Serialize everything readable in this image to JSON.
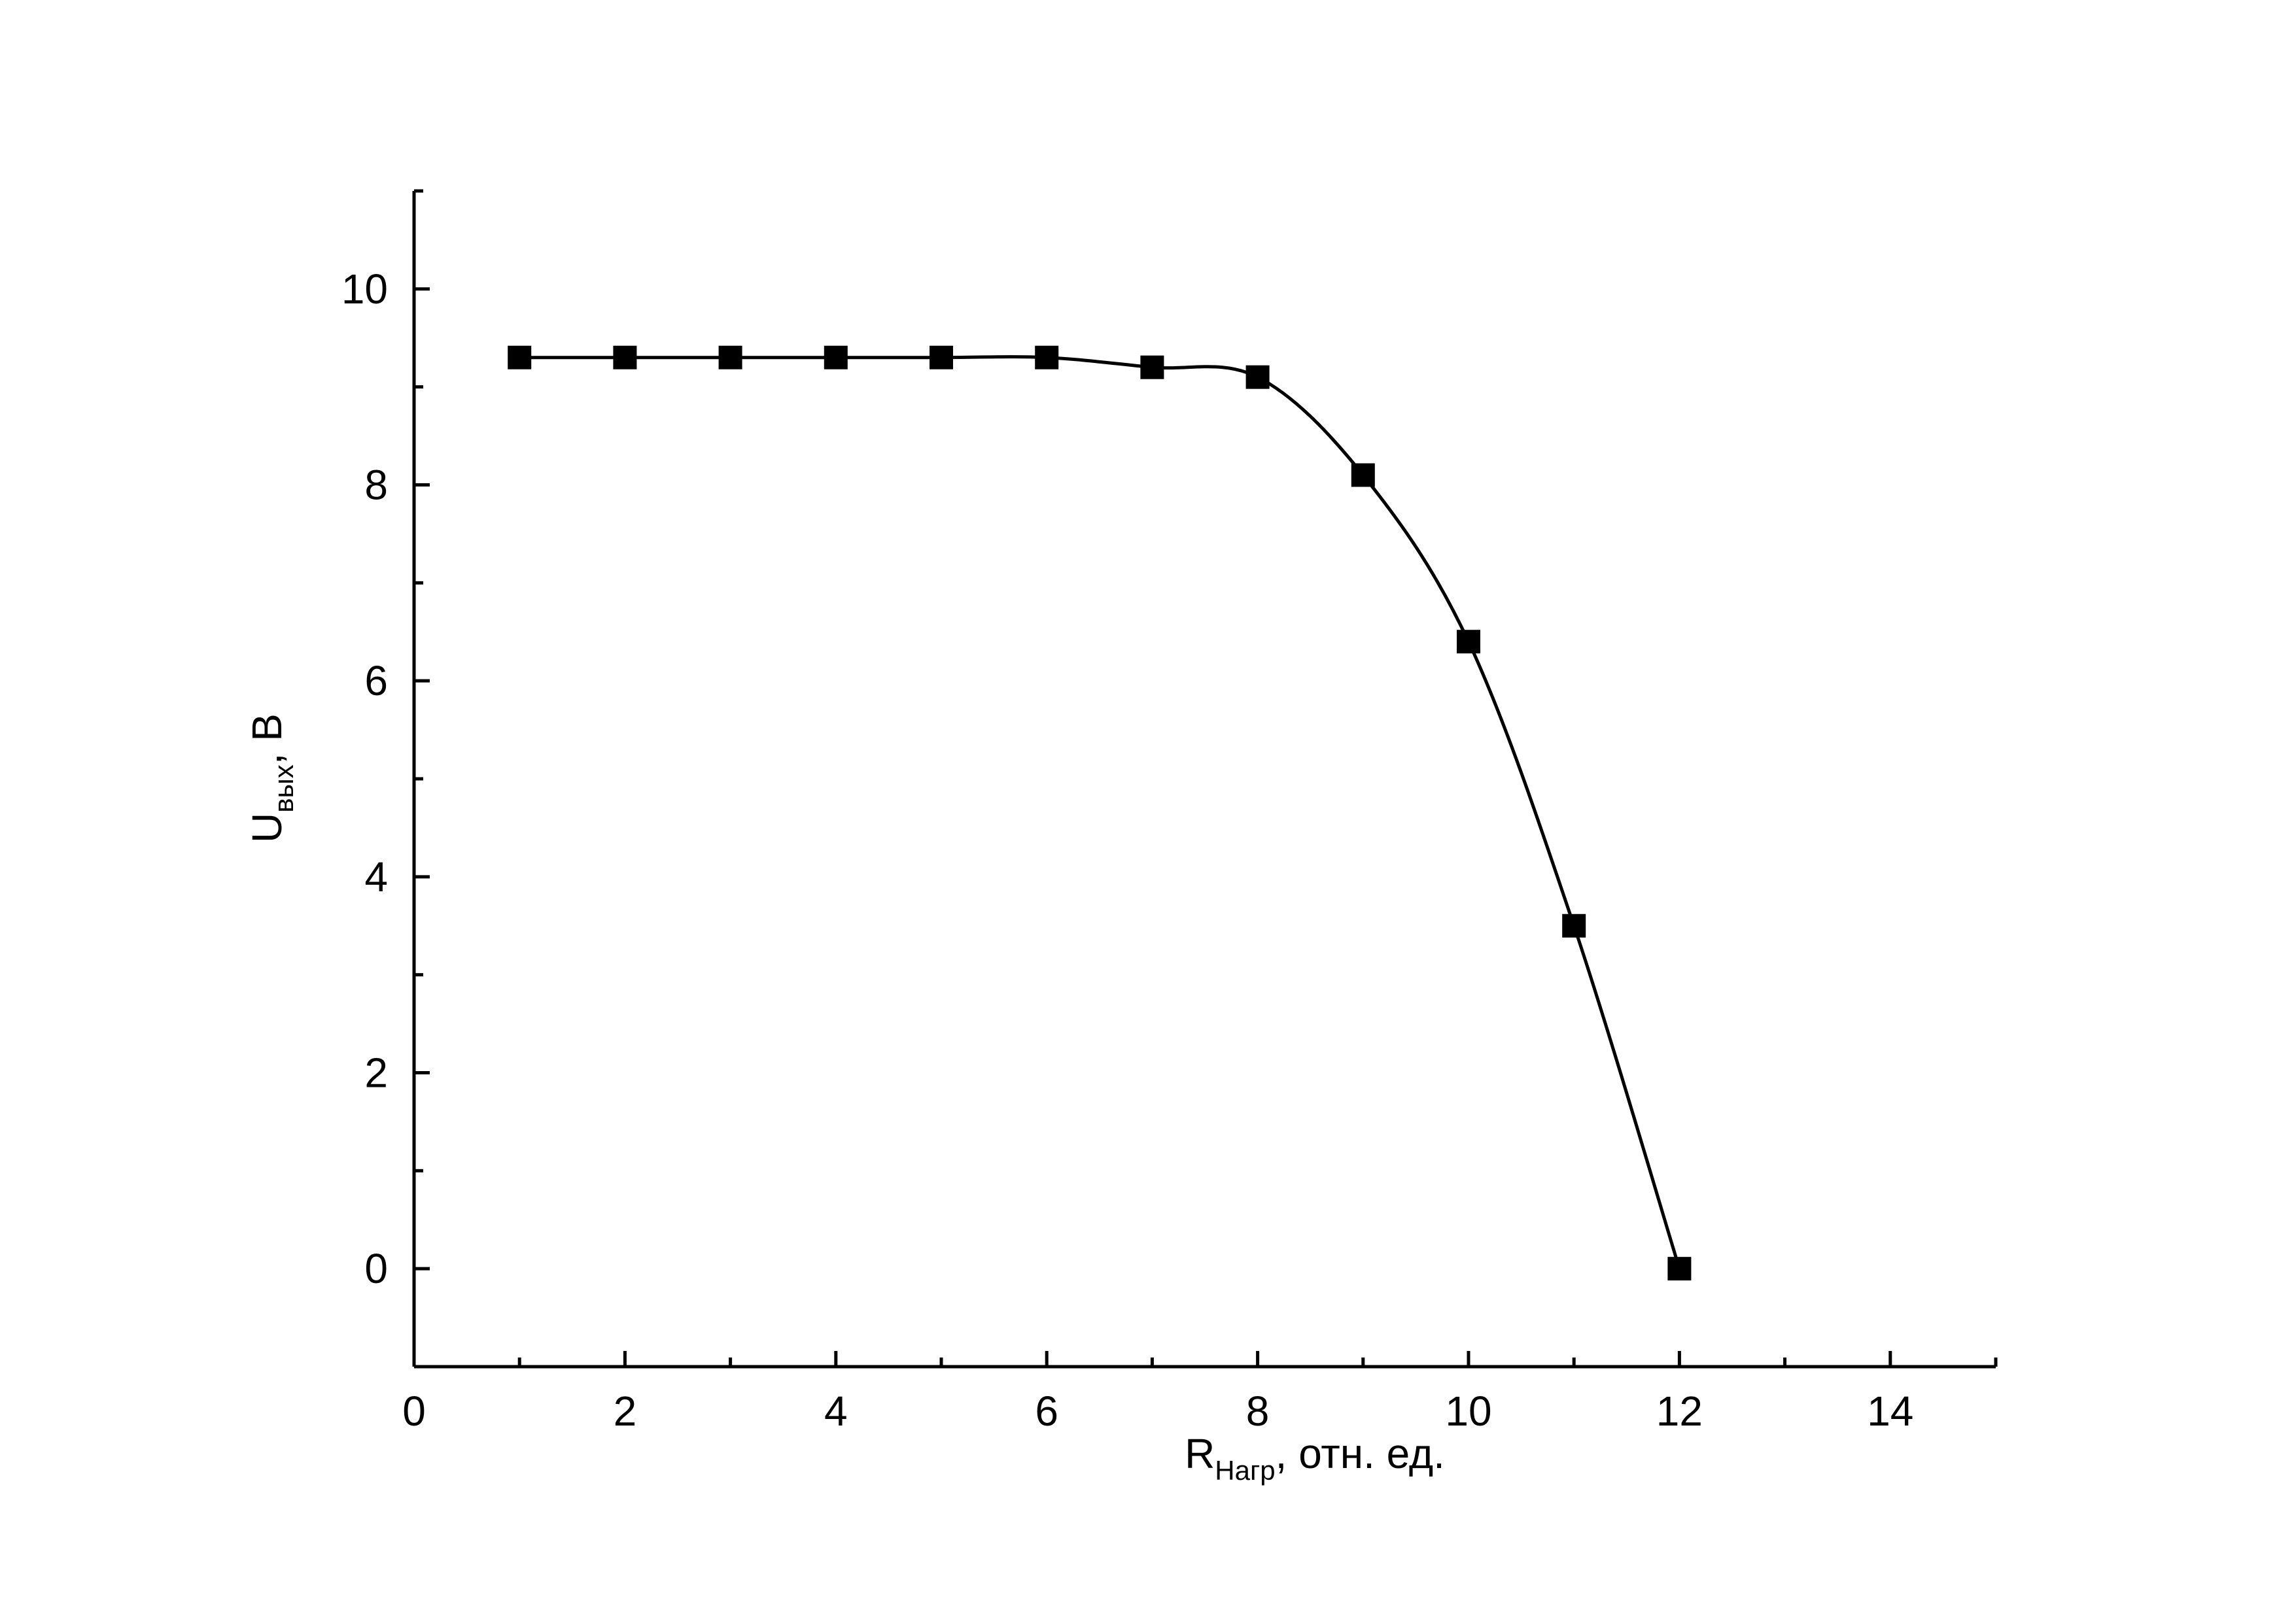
{
  "chart_data": {
    "type": "line",
    "x": [
      1,
      2,
      3,
      4,
      5,
      6,
      7,
      8,
      9,
      10,
      11,
      12
    ],
    "series": [
      {
        "color": "#000000",
        "values": [
          9.3,
          9.3,
          9.3,
          9.3,
          9.3,
          9.3,
          9.2,
          9.1,
          8.1,
          6.4,
          3.5,
          0
        ]
      }
    ],
    "xlim": [
      0,
      15
    ],
    "xticks": [
      0,
      2,
      4,
      6,
      8,
      10,
      12,
      14
    ],
    "ylim": [
      -1,
      11
    ],
    "yticks": [
      0,
      2,
      4,
      6,
      8,
      10
    ],
    "x_label": {
      "main": "R",
      "sub": "Нагр",
      "rest": ", отн. ед."
    },
    "y_label": {
      "main": "U",
      "sub": "вых",
      "rest": ", В"
    },
    "smooth": true,
    "marker": "square"
  }
}
